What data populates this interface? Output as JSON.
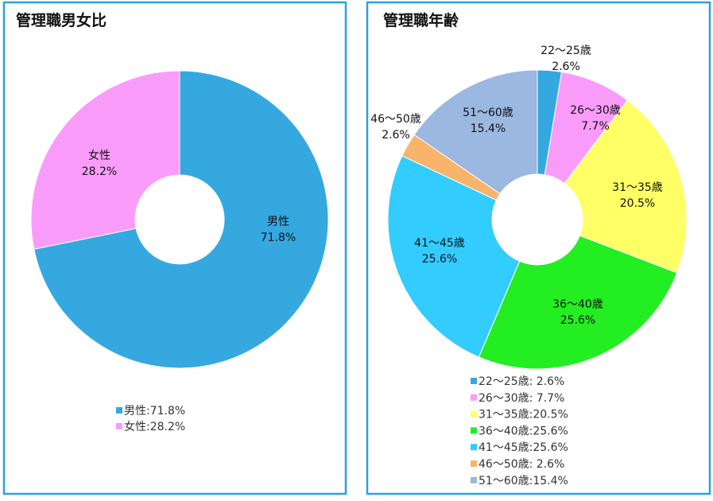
{
  "chart_data": [
    {
      "type": "donut",
      "title": "管理職男女比",
      "categories": [
        "男性",
        "女性"
      ],
      "values": [
        71.8,
        28.2
      ],
      "value_labels": [
        "71.8%",
        "28.2%"
      ],
      "colors": [
        "#35a8e0",
        "#f99cf9"
      ],
      "legend_labels": [
        "男性:71.8%",
        "女性:28.2%"
      ]
    },
    {
      "type": "donut",
      "title": "管理職年齢",
      "categories": [
        "22〜25歳",
        "26〜30歳",
        "31〜35歳",
        "36〜40歳",
        "41〜45歳",
        "46〜50歳",
        "51〜60歳"
      ],
      "values": [
        2.6,
        7.7,
        20.5,
        25.6,
        25.6,
        2.6,
        15.4
      ],
      "value_labels": [
        "2.6%",
        "7.7%",
        "20.5%",
        "25.6%",
        "25.6%",
        "2.6%",
        "15.4%"
      ],
      "colors": [
        "#35a8e0",
        "#f99cf9",
        "#ffff66",
        "#22ee22",
        "#33ccff",
        "#f8b46a",
        "#9ab8e0"
      ],
      "legend_labels": [
        "22〜25歳:  2.6%",
        "26〜30歳:  7.7%",
        "31〜35歳:20.5%",
        "36〜40歳:25.6%",
        "41〜45歳:25.6%",
        "46〜50歳:  2.6%",
        "51〜60歳:15.4%"
      ]
    }
  ]
}
